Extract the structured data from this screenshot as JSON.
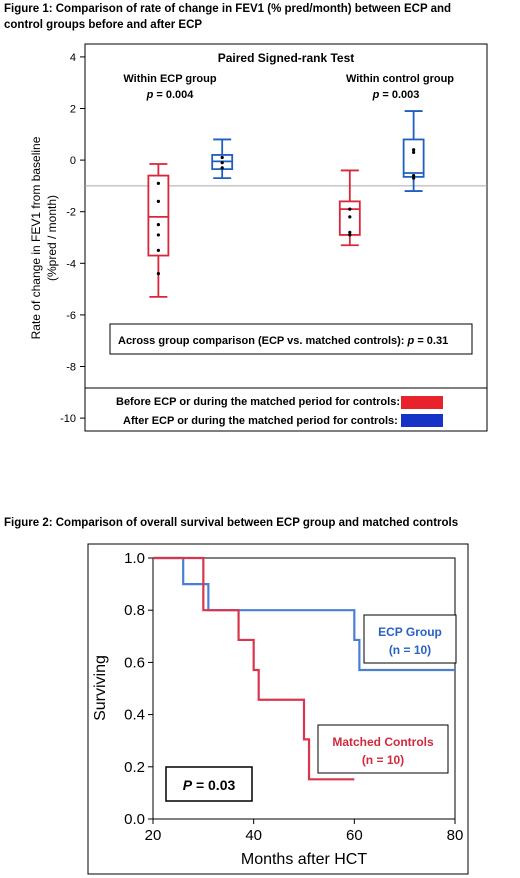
{
  "figure1": {
    "caption_line1": "Figure 1: Comparison of rate of change in FEV1 (% pred/month) between ECP and",
    "caption_line2": "control groups before and after ECP"
  },
  "figure2": {
    "caption": "Figure 2: Comparison of overall survival between ECP group and matched controls"
  },
  "chart_data": [
    {
      "type": "box",
      "title": "Paired Signed-rank Test",
      "ylabel_line1": "Rate of change in FEV1 from baseline",
      "ylabel_line2": "(%pred / month)",
      "ylim": [
        -10.5,
        4.5
      ],
      "yticks": [
        "4",
        "2",
        "0",
        "-2",
        "-4",
        "-6",
        "-8",
        "-10"
      ],
      "ytick_values": [
        4,
        2,
        0,
        -2,
        -4,
        -6,
        -8,
        -10
      ],
      "reference_line_y": -1,
      "group_labels": [
        {
          "name": "Within ECP group",
          "p_prefix": "p",
          "p_value": "= 0.004"
        },
        {
          "name": "Within control group",
          "p_prefix": "p",
          "p_value": "= 0.003"
        }
      ],
      "boxes": [
        {
          "group": "ECP",
          "phase": "before",
          "color": "#d9263a",
          "x": 1.15,
          "min": -5.3,
          "q1": -3.7,
          "median": -2.2,
          "q3": -0.6,
          "max": -0.15,
          "points": [
            -0.9,
            -1.6,
            -2.5,
            -2.9,
            -3.5,
            -4.4
          ]
        },
        {
          "group": "ECP",
          "phase": "after",
          "color": "#1f5fbf",
          "x": 2.15,
          "min": -0.7,
          "q1": -0.35,
          "median": -0.05,
          "q3": 0.2,
          "max": 0.8,
          "points": [
            0.1,
            -0.1,
            -0.3
          ]
        },
        {
          "group": "control",
          "phase": "before",
          "color": "#d9263a",
          "x": 4.15,
          "min": -3.3,
          "q1": -2.9,
          "median": -1.9,
          "q3": -1.6,
          "max": -0.4,
          "points": [
            -1.9,
            -2.2,
            -2.8,
            -2.9
          ]
        },
        {
          "group": "control",
          "phase": "after",
          "color": "#1f5fbf",
          "x": 5.15,
          "min": -1.2,
          "q1": -0.65,
          "median": -0.5,
          "q3": 0.8,
          "max": 1.9,
          "points": [
            0.4,
            0.3,
            -0.6,
            -0.7
          ]
        }
      ],
      "xlim": [
        0,
        6.3
      ],
      "annotation": {
        "text": "Across group comparison (ECP vs. matched controls): ",
        "p_prefix": "p",
        "p_value": "= 0.31"
      },
      "legend": [
        {
          "label": "Before ECP or during the matched period for controls:",
          "color": "#e8212b"
        },
        {
          "label": "After ECP or during the matched period for controls:",
          "color": "#1733c7"
        }
      ]
    },
    {
      "type": "line",
      "subtype": "step",
      "xlabel": "Months after HCT",
      "ylabel": "Surviving",
      "xlim": [
        20,
        80
      ],
      "ylim": [
        0,
        1
      ],
      "xticks": [
        "20",
        "40",
        "60",
        "80"
      ],
      "xtick_values": [
        20,
        40,
        60,
        80
      ],
      "yticks": [
        "0.0",
        "0.2",
        "0.4",
        "0.6",
        "0.8",
        "1.0"
      ],
      "ytick_values": [
        0,
        0.2,
        0.4,
        0.6,
        0.8,
        1
      ],
      "series": [
        {
          "name": "ECP Group",
          "n_label": "(n = 10)",
          "color": "#4a7fd4",
          "x": [
            20,
            26,
            26,
            31,
            31,
            60,
            60,
            61,
            61,
            80
          ],
          "y": [
            1.0,
            1.0,
            0.9,
            0.9,
            0.8,
            0.8,
            0.686,
            0.686,
            0.571,
            0.571
          ]
        },
        {
          "name": "Matched Controls",
          "n_label": "(n = 10)",
          "color": "#d9364e",
          "x": [
            20,
            30,
            30,
            37,
            37,
            40,
            40,
            41,
            41,
            50,
            50,
            51,
            51,
            60
          ],
          "y": [
            1.0,
            1.0,
            0.8,
            0.8,
            0.686,
            0.686,
            0.571,
            0.571,
            0.457,
            0.457,
            0.305,
            0.305,
            0.152,
            0.152
          ]
        }
      ],
      "annotation": {
        "prefix": "P",
        "value": " = 0.03"
      }
    }
  ]
}
